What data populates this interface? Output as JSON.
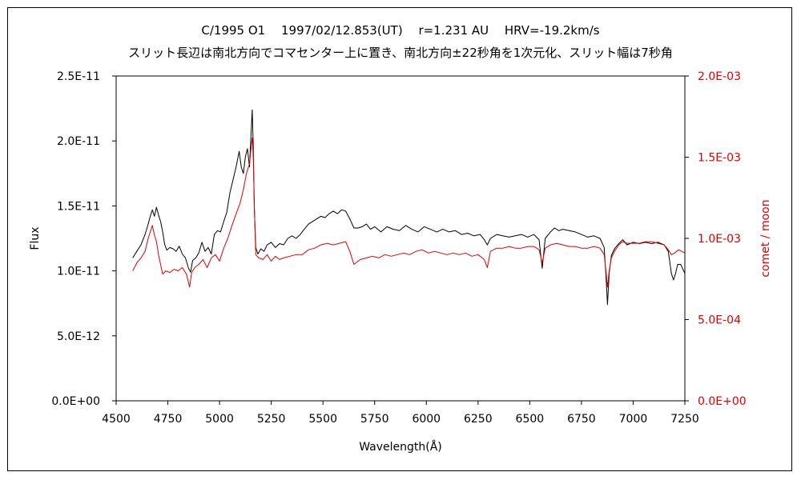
{
  "chart_data": {
    "type": "line",
    "title": "C/1995 O1　 1997/02/12.853(UT)　 r=1.231 AU　 HRV=-19.2km/s",
    "subtitle": "スリット長辺は南北方向でコマセンター上に置き、南北方向±22秒角を1次元化、スリット幅は7秒角",
    "xlabel": "Wavelength(Å)",
    "ylabel": "Flux",
    "y2label": "comet / moon",
    "xlim": [
      4500,
      7250
    ],
    "ylim": [
      0,
      2.5e-11
    ],
    "y2lim": [
      0,
      0.002
    ],
    "xticks": [
      "4500",
      "4750",
      "5000",
      "5250",
      "5500",
      "5750",
      "6000",
      "6250",
      "6500",
      "6750",
      "7000",
      "7250"
    ],
    "yticks": [
      "0.0E+00",
      "5.0E-12",
      "1.0E-11",
      "1.5E-11",
      "2.0E-11",
      "2.5E-11"
    ],
    "y2ticks": [
      "0.0E+00",
      "5.0E-04",
      "1.0E-03",
      "1.5E-03",
      "2.0E-03"
    ],
    "grid": false,
    "series": [
      {
        "color": "#000000",
        "axis": "left",
        "points": [
          [
            4580,
            1.1e-11
          ],
          [
            4600,
            1.15e-11
          ],
          [
            4620,
            1.2e-11
          ],
          [
            4640,
            1.28e-11
          ],
          [
            4655,
            1.36e-11
          ],
          [
            4665,
            1.42e-11
          ],
          [
            4675,
            1.47e-11
          ],
          [
            4685,
            1.42e-11
          ],
          [
            4695,
            1.49e-11
          ],
          [
            4705,
            1.43e-11
          ],
          [
            4715,
            1.38e-11
          ],
          [
            4725,
            1.3e-11
          ],
          [
            4735,
            1.2e-11
          ],
          [
            4745,
            1.16e-11
          ],
          [
            4760,
            1.18e-11
          ],
          [
            4775,
            1.17e-11
          ],
          [
            4790,
            1.15e-11
          ],
          [
            4805,
            1.19e-11
          ],
          [
            4820,
            1.13e-11
          ],
          [
            4835,
            1.1e-11
          ],
          [
            4850,
            1.02e-11
          ],
          [
            4860,
            9.9e-12
          ],
          [
            4870,
            1.08e-11
          ],
          [
            4885,
            1.1e-11
          ],
          [
            4900,
            1.14e-11
          ],
          [
            4915,
            1.22e-11
          ],
          [
            4930,
            1.15e-11
          ],
          [
            4945,
            1.18e-11
          ],
          [
            4960,
            1.13e-11
          ],
          [
            4975,
            1.28e-11
          ],
          [
            4990,
            1.31e-11
          ],
          [
            5005,
            1.3e-11
          ],
          [
            5020,
            1.38e-11
          ],
          [
            5035,
            1.45e-11
          ],
          [
            5050,
            1.6e-11
          ],
          [
            5065,
            1.7e-11
          ],
          [
            5080,
            1.8e-11
          ],
          [
            5095,
            1.92e-11
          ],
          [
            5105,
            1.8e-11
          ],
          [
            5115,
            1.75e-11
          ],
          [
            5125,
            1.88e-11
          ],
          [
            5135,
            1.94e-11
          ],
          [
            5145,
            1.8e-11
          ],
          [
            5152,
            2.04e-11
          ],
          [
            5158,
            2.24e-11
          ],
          [
            5163,
            1.95e-11
          ],
          [
            5168,
            1.48e-11
          ],
          [
            5175,
            1.18e-11
          ],
          [
            5185,
            1.13e-11
          ],
          [
            5200,
            1.17e-11
          ],
          [
            5215,
            1.15e-11
          ],
          [
            5230,
            1.2e-11
          ],
          [
            5250,
            1.22e-11
          ],
          [
            5270,
            1.18e-11
          ],
          [
            5290,
            1.21e-11
          ],
          [
            5310,
            1.2e-11
          ],
          [
            5330,
            1.25e-11
          ],
          [
            5350,
            1.27e-11
          ],
          [
            5370,
            1.25e-11
          ],
          [
            5390,
            1.28e-11
          ],
          [
            5410,
            1.32e-11
          ],
          [
            5430,
            1.36e-11
          ],
          [
            5450,
            1.38e-11
          ],
          [
            5470,
            1.4e-11
          ],
          [
            5490,
            1.42e-11
          ],
          [
            5510,
            1.41e-11
          ],
          [
            5530,
            1.44e-11
          ],
          [
            5550,
            1.46e-11
          ],
          [
            5570,
            1.44e-11
          ],
          [
            5590,
            1.47e-11
          ],
          [
            5610,
            1.46e-11
          ],
          [
            5630,
            1.4e-11
          ],
          [
            5650,
            1.33e-11
          ],
          [
            5670,
            1.33e-11
          ],
          [
            5690,
            1.34e-11
          ],
          [
            5710,
            1.36e-11
          ],
          [
            5730,
            1.32e-11
          ],
          [
            5750,
            1.34e-11
          ],
          [
            5780,
            1.3e-11
          ],
          [
            5810,
            1.34e-11
          ],
          [
            5840,
            1.32e-11
          ],
          [
            5870,
            1.31e-11
          ],
          [
            5900,
            1.35e-11
          ],
          [
            5930,
            1.32e-11
          ],
          [
            5960,
            1.3e-11
          ],
          [
            5990,
            1.34e-11
          ],
          [
            6020,
            1.32e-11
          ],
          [
            6050,
            1.3e-11
          ],
          [
            6080,
            1.32e-11
          ],
          [
            6110,
            1.3e-11
          ],
          [
            6140,
            1.31e-11
          ],
          [
            6170,
            1.28e-11
          ],
          [
            6200,
            1.29e-11
          ],
          [
            6230,
            1.27e-11
          ],
          [
            6260,
            1.28e-11
          ],
          [
            6280,
            1.24e-11
          ],
          [
            6295,
            1.2e-11
          ],
          [
            6310,
            1.25e-11
          ],
          [
            6340,
            1.28e-11
          ],
          [
            6370,
            1.27e-11
          ],
          [
            6400,
            1.26e-11
          ],
          [
            6430,
            1.27e-11
          ],
          [
            6460,
            1.28e-11
          ],
          [
            6490,
            1.26e-11
          ],
          [
            6520,
            1.28e-11
          ],
          [
            6545,
            1.24e-11
          ],
          [
            6560,
            1.02e-11
          ],
          [
            6575,
            1.25e-11
          ],
          [
            6600,
            1.3e-11
          ],
          [
            6620,
            1.33e-11
          ],
          [
            6640,
            1.31e-11
          ],
          [
            6660,
            1.32e-11
          ],
          [
            6690,
            1.31e-11
          ],
          [
            6720,
            1.3e-11
          ],
          [
            6750,
            1.28e-11
          ],
          [
            6780,
            1.26e-11
          ],
          [
            6810,
            1.27e-11
          ],
          [
            6840,
            1.25e-11
          ],
          [
            6860,
            1.18e-11
          ],
          [
            6870,
            9.2e-12
          ],
          [
            6876,
            7.4e-12
          ],
          [
            6884,
            9.8e-12
          ],
          [
            6895,
            1.12e-11
          ],
          [
            6910,
            1.17e-11
          ],
          [
            6930,
            1.21e-11
          ],
          [
            6950,
            1.24e-11
          ],
          [
            6970,
            1.2e-11
          ],
          [
            7000,
            1.22e-11
          ],
          [
            7030,
            1.21e-11
          ],
          [
            7060,
            1.22e-11
          ],
          [
            7090,
            1.21e-11
          ],
          [
            7120,
            1.22e-11
          ],
          [
            7150,
            1.2e-11
          ],
          [
            7170,
            1.15e-11
          ],
          [
            7185,
            9.8e-12
          ],
          [
            7195,
            9.3e-12
          ],
          [
            7205,
            9.8e-12
          ],
          [
            7215,
            1.05e-11
          ],
          [
            7230,
            1.05e-11
          ],
          [
            7250,
            9.8e-12
          ]
        ]
      },
      {
        "color": "#e00000",
        "axis": "right",
        "points": [
          [
            4580,
            0.0008
          ],
          [
            4600,
            0.00085
          ],
          [
            4620,
            0.00088
          ],
          [
            4640,
            0.00092
          ],
          [
            4655,
            0.001
          ],
          [
            4665,
            0.00104
          ],
          [
            4675,
            0.00108
          ],
          [
            4685,
            0.00102
          ],
          [
            4695,
            0.00098
          ],
          [
            4705,
            0.0009
          ],
          [
            4715,
            0.00084
          ],
          [
            4725,
            0.00078
          ],
          [
            4740,
            0.0008
          ],
          [
            4760,
            0.00079
          ],
          [
            4780,
            0.00081
          ],
          [
            4800,
            0.0008
          ],
          [
            4820,
            0.00082
          ],
          [
            4840,
            0.00078
          ],
          [
            4855,
            0.0007
          ],
          [
            4865,
            0.00079
          ],
          [
            4880,
            0.00082
          ],
          [
            4900,
            0.00084
          ],
          [
            4920,
            0.00087
          ],
          [
            4940,
            0.00082
          ],
          [
            4960,
            0.00088
          ],
          [
            4980,
            0.0009
          ],
          [
            5000,
            0.00086
          ],
          [
            5020,
            0.00094
          ],
          [
            5040,
            0.001
          ],
          [
            5060,
            0.00108
          ],
          [
            5080,
            0.00115
          ],
          [
            5100,
            0.00122
          ],
          [
            5115,
            0.0013
          ],
          [
            5130,
            0.0014
          ],
          [
            5145,
            0.00146
          ],
          [
            5152,
            0.00155
          ],
          [
            5158,
            0.00162
          ],
          [
            5163,
            0.0015
          ],
          [
            5168,
            0.0012
          ],
          [
            5175,
            0.0009
          ],
          [
            5190,
            0.00088
          ],
          [
            5210,
            0.00087
          ],
          [
            5230,
            0.0009
          ],
          [
            5250,
            0.00086
          ],
          [
            5270,
            0.00089
          ],
          [
            5290,
            0.00087
          ],
          [
            5310,
            0.00088
          ],
          [
            5340,
            0.00089
          ],
          [
            5370,
            0.0009
          ],
          [
            5400,
            0.0009
          ],
          [
            5430,
            0.00093
          ],
          [
            5460,
            0.00094
          ],
          [
            5490,
            0.00096
          ],
          [
            5520,
            0.00097
          ],
          [
            5550,
            0.00096
          ],
          [
            5580,
            0.00097
          ],
          [
            5610,
            0.00098
          ],
          [
            5630,
            0.00092
          ],
          [
            5650,
            0.00084
          ],
          [
            5680,
            0.00087
          ],
          [
            5710,
            0.00088
          ],
          [
            5740,
            0.00089
          ],
          [
            5770,
            0.00088
          ],
          [
            5800,
            0.0009
          ],
          [
            5830,
            0.00089
          ],
          [
            5860,
            0.0009
          ],
          [
            5890,
            0.00091
          ],
          [
            5920,
            0.0009
          ],
          [
            5950,
            0.00092
          ],
          [
            5980,
            0.00093
          ],
          [
            6010,
            0.00091
          ],
          [
            6040,
            0.00092
          ],
          [
            6070,
            0.00091
          ],
          [
            6100,
            0.0009
          ],
          [
            6130,
            0.00091
          ],
          [
            6160,
            0.0009
          ],
          [
            6190,
            0.00091
          ],
          [
            6220,
            0.00089
          ],
          [
            6250,
            0.0009
          ],
          [
            6280,
            0.00087
          ],
          [
            6295,
            0.00082
          ],
          [
            6310,
            0.00092
          ],
          [
            6340,
            0.00094
          ],
          [
            6370,
            0.00094
          ],
          [
            6400,
            0.00095
          ],
          [
            6430,
            0.00094
          ],
          [
            6460,
            0.00094
          ],
          [
            6490,
            0.00095
          ],
          [
            6520,
            0.00095
          ],
          [
            6545,
            0.00093
          ],
          [
            6560,
            0.00085
          ],
          [
            6575,
            0.00094
          ],
          [
            6600,
            0.00096
          ],
          [
            6630,
            0.00097
          ],
          [
            6660,
            0.00096
          ],
          [
            6690,
            0.00095
          ],
          [
            6720,
            0.00095
          ],
          [
            6750,
            0.00094
          ],
          [
            6780,
            0.00094
          ],
          [
            6810,
            0.00095
          ],
          [
            6840,
            0.00094
          ],
          [
            6860,
            0.0009
          ],
          [
            6870,
            0.00078
          ],
          [
            6876,
            0.0007
          ],
          [
            6884,
            0.0008
          ],
          [
            6895,
            0.00088
          ],
          [
            6910,
            0.00092
          ],
          [
            6930,
            0.00096
          ],
          [
            6950,
            0.00098
          ],
          [
            6970,
            0.00097
          ],
          [
            7000,
            0.00097
          ],
          [
            7030,
            0.00097
          ],
          [
            7060,
            0.00098
          ],
          [
            7090,
            0.00098
          ],
          [
            7120,
            0.00097
          ],
          [
            7150,
            0.00096
          ],
          [
            7170,
            0.00093
          ],
          [
            7185,
            0.0009
          ],
          [
            7200,
            0.00091
          ],
          [
            7220,
            0.00093
          ],
          [
            7250,
            0.00091
          ]
        ]
      }
    ]
  }
}
